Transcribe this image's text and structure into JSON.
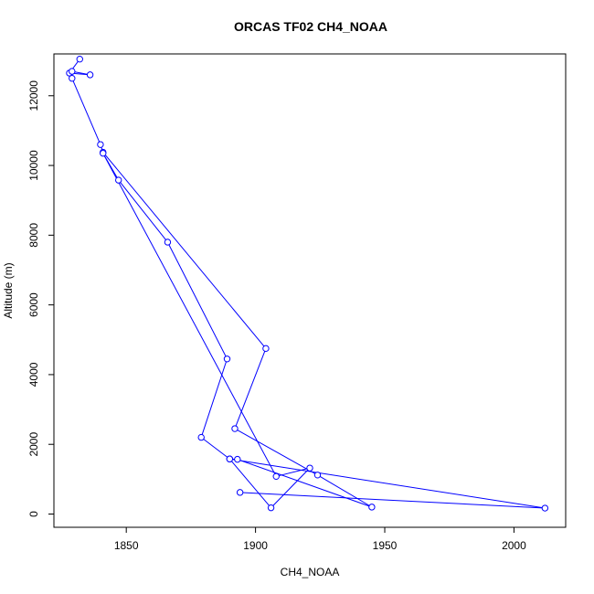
{
  "chart_data": {
    "type": "line",
    "title": "ORCAS TF02 CH4_NOAA",
    "xlabel": "CH4_NOAA",
    "ylabel": "Altitude (m)",
    "xlim": [
      1822,
      2020
    ],
    "ylim": [
      -380,
      13200
    ],
    "xticks": [
      1850,
      1900,
      1950,
      2000
    ],
    "yticks": [
      0,
      2000,
      4000,
      6000,
      8000,
      10000,
      12000
    ],
    "grid": false,
    "legend": "none",
    "line_color": "#0000ff",
    "series": [
      {
        "points": [
          {
            "x": 1832,
            "y": 13050
          },
          {
            "x": 1828,
            "y": 12650
          },
          {
            "x": 1836,
            "y": 12600
          },
          {
            "x": 1829,
            "y": 12700
          },
          {
            "x": 1829,
            "y": 12500
          },
          {
            "x": 1840,
            "y": 10600
          },
          {
            "x": 1841,
            "y": 10380
          },
          {
            "x": 1904,
            "y": 4750
          },
          {
            "x": 1892,
            "y": 2450
          },
          {
            "x": 1924,
            "y": 1120
          },
          {
            "x": 1945,
            "y": 200
          },
          {
            "x": 1893,
            "y": 1570
          },
          {
            "x": 1890,
            "y": 1580
          },
          {
            "x": 1879,
            "y": 2200
          },
          {
            "x": 1889,
            "y": 4450
          },
          {
            "x": 1866,
            "y": 7800
          },
          {
            "x": 1847,
            "y": 9580
          },
          {
            "x": 1841,
            "y": 10350
          },
          {
            "x": 1908,
            "y": 1080
          },
          {
            "x": 1921,
            "y": 1320
          },
          {
            "x": 1906,
            "y": 180
          },
          {
            "x": 1890,
            "y": 1580
          },
          {
            "x": 2012,
            "y": 170
          },
          {
            "x": 1894,
            "y": 620
          }
        ]
      }
    ]
  }
}
